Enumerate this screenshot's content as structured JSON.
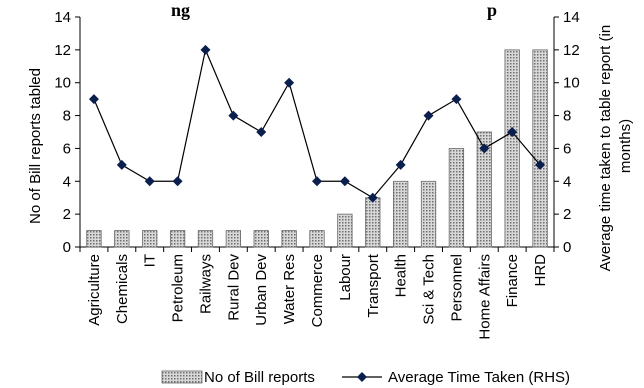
{
  "chart_data": {
    "type": "bar+line",
    "title": "ng                                                                  p",
    "categories": [
      "Agriculture",
      "Chemicals",
      "IT",
      "Petroleum",
      "Railways",
      "Rural Dev",
      "Urban Dev",
      "Water Res",
      "Commerce",
      "Labour",
      "Transport",
      "Health",
      "Sci & Tech",
      "Personnel",
      "Home Affairs",
      "Finance",
      "HRD"
    ],
    "series": [
      {
        "name": "No of Bill reports",
        "type": "bar",
        "axis": "left",
        "values": [
          1,
          1,
          1,
          1,
          1,
          1,
          1,
          1,
          1,
          2,
          3,
          4,
          4,
          6,
          7,
          12,
          12
        ]
      },
      {
        "name": "Average Time Taken (RHS)",
        "type": "line",
        "axis": "right",
        "values": [
          9,
          5,
          4,
          4,
          12,
          8,
          7,
          10,
          4,
          4,
          3,
          5,
          8,
          9,
          6,
          7,
          5
        ]
      }
    ],
    "ylabel_left": "No of Bill reports tabled",
    "ylabel_right": "Average time taken to table report (in months)",
    "ylabel_right_lines": [
      "Average time taken to table report (in",
      "months)"
    ],
    "ylim_left": [
      0,
      14
    ],
    "ylim_right": [
      0,
      14
    ],
    "yticks": [
      0,
      2,
      4,
      6,
      8,
      10,
      12,
      14
    ],
    "grid": false,
    "legend": "bottom",
    "colors": {
      "bar_fill": "#b0b0b0",
      "bar_stroke": "#6a6a6a",
      "line": "#000000",
      "marker": "#0b1f4f"
    }
  }
}
